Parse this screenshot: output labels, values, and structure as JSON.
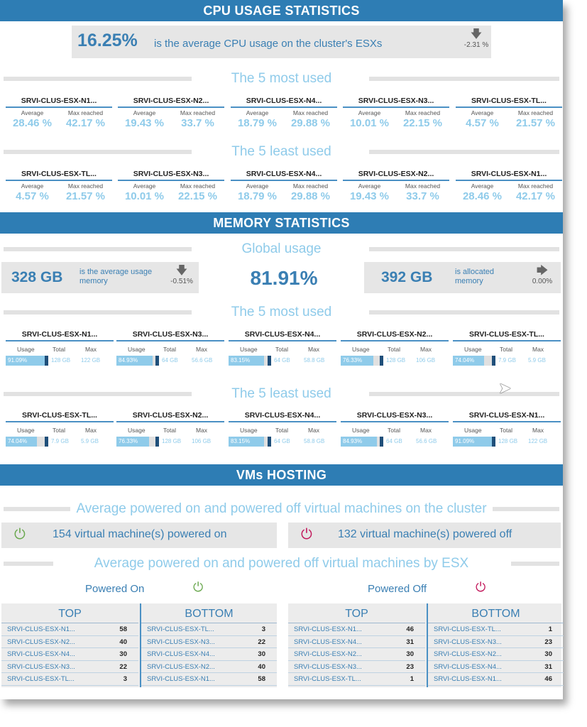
{
  "cpu": {
    "header": "CPU USAGE STATISTICS",
    "average_value": "16.25%",
    "average_desc": "is the average CPU usage on the cluster's ESXs",
    "average_trend": "-2.31 %",
    "most_used_title": "The 5 most used",
    "least_used_title": "The 5 least used",
    "average_label": "Average",
    "max_label": "Max reached",
    "most_used": [
      {
        "name": "SRVI-CLUS-ESX-N1...",
        "average": "28.46 %",
        "max": "42.17 %"
      },
      {
        "name": "SRVI-CLUS-ESX-N2...",
        "average": "19.43 %",
        "max": "33.7 %"
      },
      {
        "name": "SRVI-CLUS-ESX-N4...",
        "average": "18.79 %",
        "max": "29.88 %"
      },
      {
        "name": "SRVI-CLUS-ESX-N3...",
        "average": "10.01 %",
        "max": "22.15 %"
      },
      {
        "name": "SRVI-CLUS-ESX-TL...",
        "average": "4.57 %",
        "max": "21.57 %"
      }
    ],
    "least_used": [
      {
        "name": "SRVI-CLUS-ESX-TL...",
        "average": "4.57 %",
        "max": "21.57 %"
      },
      {
        "name": "SRVI-CLUS-ESX-N3...",
        "average": "10.01 %",
        "max": "22.15 %"
      },
      {
        "name": "SRVI-CLUS-ESX-N4...",
        "average": "18.79 %",
        "max": "29.88 %"
      },
      {
        "name": "SRVI-CLUS-ESX-N2...",
        "average": "19.43 %",
        "max": "33.7 %"
      },
      {
        "name": "SRVI-CLUS-ESX-N1...",
        "average": "28.46 %",
        "max": "42.17 %"
      }
    ]
  },
  "memory": {
    "header": "MEMORY STATISTICS",
    "global_title": "Global usage",
    "avg_usage_value": "328 GB",
    "avg_usage_desc": "is the average usage memory",
    "avg_usage_trend": "-0.51%",
    "global_percent": "81.91%",
    "allocated_value": "392 GB",
    "allocated_desc": "is allocated memory",
    "allocated_trend": "0.00%",
    "most_used_title": "The 5 most used",
    "least_used_title": "The 5 least used",
    "usage_label": "Usage",
    "total_label": "Total",
    "max_label": "Max",
    "most_used": [
      {
        "name": "SRVI-CLUS-ESX-N1...",
        "usage": "91.09%",
        "usage_frac": 0.9109,
        "total": "128 GB",
        "max": "122 GB"
      },
      {
        "name": "SRVI-CLUS-ESX-N3...",
        "usage": "84.93%",
        "usage_frac": 0.8493,
        "total": "64 GB",
        "max": "56.6 GB"
      },
      {
        "name": "SRVI-CLUS-ESX-N4...",
        "usage": "83.15%",
        "usage_frac": 0.8315,
        "total": "64 GB",
        "max": "58.8 GB"
      },
      {
        "name": "SRVI-CLUS-ESX-N2...",
        "usage": "76.33%",
        "usage_frac": 0.7633,
        "total": "128 GB",
        "max": "106 GB"
      },
      {
        "name": "SRVI-CLUS-ESX-TL...",
        "usage": "74.04%",
        "usage_frac": 0.7404,
        "total": "7.9 GB",
        "max": "5.9 GB"
      }
    ],
    "least_used": [
      {
        "name": "SRVI-CLUS-ESX-TL...",
        "usage": "74.04%",
        "usage_frac": 0.7404,
        "total": "7.9 GB",
        "max": "5.9 GB"
      },
      {
        "name": "SRVI-CLUS-ESX-N2...",
        "usage": "76.33%",
        "usage_frac": 0.7633,
        "total": "128 GB",
        "max": "106 GB"
      },
      {
        "name": "SRVI-CLUS-ESX-N4...",
        "usage": "83.15%",
        "usage_frac": 0.8315,
        "total": "64 GB",
        "max": "58.8 GB"
      },
      {
        "name": "SRVI-CLUS-ESX-N3...",
        "usage": "84.93%",
        "usage_frac": 0.8493,
        "total": "64 GB",
        "max": "56.6 GB"
      },
      {
        "name": "SRVI-CLUS-ESX-N1...",
        "usage": "91.09%",
        "usage_frac": 0.9109,
        "total": "128 GB",
        "max": "122 GB"
      }
    ]
  },
  "vms": {
    "header": "VMs HOSTING",
    "cluster_title": "Average powered on and powered off virtual machines on the cluster",
    "powered_on_text": "154 virtual machine(s) powered on",
    "powered_off_text": "132  virtual machine(s) powered off",
    "by_esx_title": "Average powered on and powered off virtual machines by ESX",
    "powered_on_label": "Powered On",
    "powered_off_label": "Powered Off",
    "top_label": "TOP",
    "bottom_label": "BOTTOM",
    "on_top": [
      {
        "name": "SRVI-CLUS-ESX-N1...",
        "count": "58"
      },
      {
        "name": "SRVI-CLUS-ESX-N2...",
        "count": "40"
      },
      {
        "name": "SRVI-CLUS-ESX-N4...",
        "count": "30"
      },
      {
        "name": "SRVI-CLUS-ESX-N3...",
        "count": "22"
      },
      {
        "name": "SRVI-CLUS-ESX-TL...",
        "count": "3"
      }
    ],
    "on_bottom": [
      {
        "name": "SRVI-CLUS-ESX-TL...",
        "count": "3"
      },
      {
        "name": "SRVI-CLUS-ESX-N3...",
        "count": "22"
      },
      {
        "name": "SRVI-CLUS-ESX-N4...",
        "count": "30"
      },
      {
        "name": "SRVI-CLUS-ESX-N2...",
        "count": "40"
      },
      {
        "name": "SRVI-CLUS-ESX-N1...",
        "count": "58"
      }
    ],
    "off_top": [
      {
        "name": "SRVI-CLUS-ESX-N1...",
        "count": "46"
      },
      {
        "name": "SRVI-CLUS-ESX-N4...",
        "count": "31"
      },
      {
        "name": "SRVI-CLUS-ESX-N2...",
        "count": "30"
      },
      {
        "name": "SRVI-CLUS-ESX-N3...",
        "count": "23"
      },
      {
        "name": "SRVI-CLUS-ESX-TL...",
        "count": "1"
      }
    ],
    "off_bottom": [
      {
        "name": "SRVI-CLUS-ESX-TL...",
        "count": "1"
      },
      {
        "name": "SRVI-CLUS-ESX-N3...",
        "count": "23"
      },
      {
        "name": "SRVI-CLUS-ESX-N2...",
        "count": "30"
      },
      {
        "name": "SRVI-CLUS-ESX-N4...",
        "count": "31"
      },
      {
        "name": "SRVI-CLUS-ESX-N1...",
        "count": "46"
      }
    ]
  },
  "colors": {
    "header_bg": "#2e7db4",
    "accent": "#3a7fb3",
    "light_accent": "#8fcbea",
    "power_on": "#6aa84f",
    "power_off": "#c2185b"
  },
  "icons": {
    "trend_down": "arrow-down-icon",
    "trend_flat": "arrow-right-icon",
    "power": "power-icon",
    "cursor": "mouse-pointer-icon"
  }
}
